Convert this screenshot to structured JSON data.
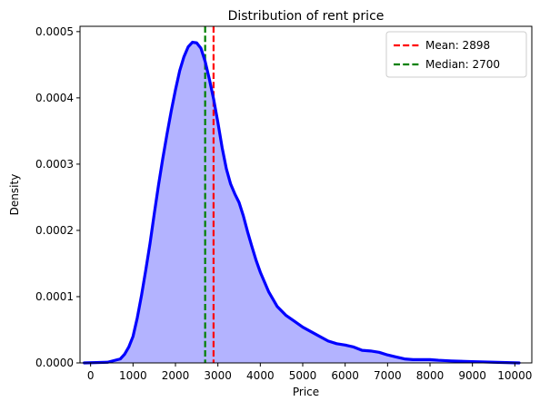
{
  "chart_data": {
    "type": "area",
    "title": "Distribution of rent price",
    "xlabel": "Price",
    "ylabel": "Density",
    "xlim": [
      -250,
      10400
    ],
    "ylim": [
      0,
      0.000508
    ],
    "xticks": [
      0,
      1000,
      2000,
      3000,
      4000,
      5000,
      6000,
      7000,
      8000,
      9000,
      10000
    ],
    "xtick_labels": [
      "0",
      "1000",
      "2000",
      "3000",
      "4000",
      "5000",
      "6000",
      "7000",
      "8000",
      "9000",
      "10000"
    ],
    "yticks": [
      0,
      0.0001,
      0.0002,
      0.0003,
      0.0004,
      0.0005
    ],
    "ytick_labels": [
      "0.0000",
      "0.0001",
      "0.0002",
      "0.0003",
      "0.0004",
      "0.0005"
    ],
    "grid": false,
    "legend_position": "top-right",
    "series": [
      {
        "kind": "density",
        "color": "#0000ff",
        "fill_color": "#b3b3ff",
        "x": [
          -150,
          400,
          700,
          800,
          900,
          1000,
          1100,
          1200,
          1300,
          1400,
          1500,
          1600,
          1700,
          1800,
          1900,
          2000,
          2100,
          2200,
          2300,
          2400,
          2500,
          2600,
          2700,
          2800,
          2900,
          3000,
          3100,
          3200,
          3300,
          3400,
          3500,
          3600,
          3700,
          3800,
          3900,
          4000,
          4200,
          4400,
          4600,
          4800,
          5000,
          5200,
          5400,
          5600,
          5800,
          6000,
          6200,
          6400,
          6600,
          6800,
          7000,
          7200,
          7400,
          7600,
          7800,
          8000,
          8200,
          8500,
          9000,
          9500,
          10100
        ],
        "y": [
          0,
          1e-06,
          6e-06,
          1.3e-05,
          2.4e-05,
          4e-05,
          6.8e-05,
          0.000102,
          0.00014,
          0.00018,
          0.000225,
          0.000268,
          0.000308,
          0.000345,
          0.00038,
          0.000412,
          0.000441,
          0.000462,
          0.000477,
          0.000484,
          0.000483,
          0.000475,
          0.000455,
          0.000428,
          0.000398,
          0.000363,
          0.000325,
          0.000293,
          0.00027,
          0.000255,
          0.000242,
          0.000222,
          0.000198,
          0.000176,
          0.000155,
          0.000137,
          0.000107,
          8.5e-05,
          7.2e-05,
          6.3e-05,
          5.4e-05,
          4.7e-05,
          4e-05,
          3.3e-05,
          2.9e-05,
          2.7e-05,
          2.4e-05,
          1.9e-05,
          1.8e-05,
          1.6e-05,
          1.2e-05,
          9e-06,
          6e-06,
          5e-06,
          5e-06,
          5e-06,
          4e-06,
          3e-06,
          2e-06,
          1e-06,
          0
        ]
      }
    ],
    "reference_lines": [
      {
        "label": "Mean: 2898",
        "x": 2898,
        "color": "#ff0000",
        "style": "dashed"
      },
      {
        "label": "Median: 2700",
        "x": 2700,
        "color": "#008000",
        "style": "dashed"
      }
    ]
  }
}
